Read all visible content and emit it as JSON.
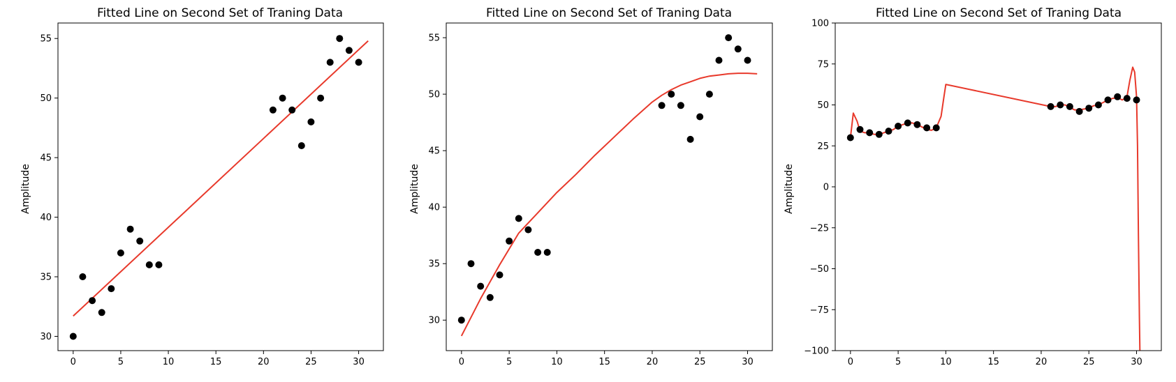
{
  "colors": {
    "points": "#000000",
    "fit_line": "#e8392b"
  },
  "chart_data": [
    {
      "type": "scatter",
      "title": "Fitted Line on Second Set of Traning Data",
      "xlabel": "",
      "ylabel": "Amplitude",
      "xlim": [
        -1.6,
        32.6
      ],
      "ylim": [
        28.8,
        56.3
      ],
      "xticks": [
        0,
        5,
        10,
        15,
        20,
        25,
        30
      ],
      "yticks": [
        30,
        35,
        40,
        45,
        50,
        55
      ],
      "grid": false,
      "series": [
        {
          "kind": "points",
          "color": "#000000",
          "x": [
            0,
            1,
            2,
            3,
            4,
            5,
            6,
            7,
            8,
            9,
            21,
            22,
            23,
            24,
            25,
            26,
            27,
            28,
            29,
            30
          ],
          "y": [
            30,
            35,
            33,
            32,
            34,
            37,
            39,
            38,
            36,
            36,
            49,
            50,
            49,
            46,
            48,
            50,
            53,
            55,
            54,
            53
          ]
        },
        {
          "kind": "line",
          "color": "#e8392b",
          "x": [
            0,
            31
          ],
          "y": [
            31.7,
            54.8
          ]
        }
      ]
    },
    {
      "type": "scatter",
      "title": "Fitted Line on Second Set of Traning Data",
      "xlabel": "",
      "ylabel": "Amplitude",
      "xlim": [
        -1.6,
        32.6
      ],
      "ylim": [
        27.3,
        56.3
      ],
      "xticks": [
        0,
        5,
        10,
        15,
        20,
        25,
        30
      ],
      "yticks": [
        30,
        35,
        40,
        45,
        50,
        55
      ],
      "grid": false,
      "series": [
        {
          "kind": "points",
          "color": "#000000",
          "x": [
            0,
            1,
            2,
            3,
            4,
            5,
            6,
            7,
            8,
            9,
            21,
            22,
            23,
            24,
            25,
            26,
            27,
            28,
            29,
            30
          ],
          "y": [
            30,
            35,
            33,
            32,
            34,
            37,
            39,
            38,
            36,
            36,
            49,
            50,
            49,
            46,
            48,
            50,
            53,
            55,
            54,
            53
          ]
        },
        {
          "kind": "line",
          "color": "#e8392b",
          "x": [
            0,
            2,
            4,
            6,
            8,
            10,
            12,
            14,
            16,
            18,
            20,
            21,
            22,
            23,
            24,
            25,
            26,
            27,
            28,
            29,
            30,
            31
          ],
          "y": [
            28.6,
            31.9,
            34.9,
            37.7,
            39.5,
            41.3,
            42.9,
            44.6,
            46.2,
            47.8,
            49.3,
            49.9,
            50.4,
            50.8,
            51.1,
            51.4,
            51.6,
            51.7,
            51.8,
            51.85,
            51.85,
            51.8
          ]
        }
      ]
    },
    {
      "type": "scatter",
      "title": "Fitted Line on Second Set of Traning Data",
      "xlabel": "",
      "ylabel": "Amplitude",
      "xlim": [
        -1.6,
        32.6
      ],
      "ylim": [
        -100,
        100
      ],
      "xticks": [
        0,
        5,
        10,
        15,
        20,
        25,
        30
      ],
      "yticks": [
        -100,
        -75,
        -50,
        -25,
        0,
        25,
        50,
        75,
        100
      ],
      "grid": false,
      "series": [
        {
          "kind": "points",
          "color": "#000000",
          "x": [
            0,
            1,
            2,
            3,
            4,
            5,
            6,
            7,
            8,
            9,
            21,
            22,
            23,
            24,
            25,
            26,
            27,
            28,
            29,
            30
          ],
          "y": [
            30,
            35,
            33,
            32,
            34,
            37,
            39,
            38,
            36,
            36,
            49,
            50,
            49,
            46,
            48,
            50,
            53,
            55,
            54,
            53
          ]
        },
        {
          "kind": "line",
          "color": "#e8392b",
          "x": [
            0,
            0.3,
            0.7,
            1.0,
            1.5,
            2,
            2.5,
            3,
            3.5,
            4,
            4.5,
            5,
            5.5,
            6,
            6.5,
            7,
            7.5,
            8,
            8.5,
            9,
            9.5,
            9.8,
            10,
            21,
            21.5,
            22,
            22.5,
            23,
            23.5,
            24,
            24.5,
            25,
            25.5,
            26,
            26.5,
            27,
            27.5,
            28,
            28.5,
            29,
            29.3,
            29.6,
            29.8,
            30,
            30.1,
            30.2,
            30.3,
            30.35
          ],
          "y": [
            30,
            45,
            40,
            34,
            33,
            33,
            32,
            32,
            33,
            34,
            35,
            37,
            38,
            39,
            39,
            38,
            36.5,
            35,
            34.5,
            36,
            43,
            55,
            62.5,
            49,
            49,
            50,
            50,
            48.5,
            47,
            47,
            47.5,
            48,
            49.5,
            50,
            51.5,
            53,
            54,
            54.5,
            53,
            55,
            65,
            73,
            70,
            55,
            25,
            -30,
            -80,
            -100
          ]
        }
      ]
    }
  ]
}
